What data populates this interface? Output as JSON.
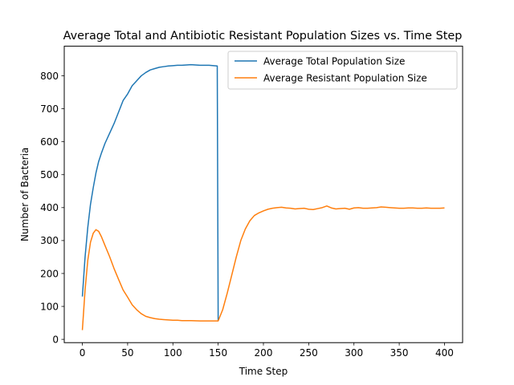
{
  "chart_data": {
    "type": "line",
    "title": "Average Total and Antibiotic Resistant Population Sizes vs. Time Step",
    "xlabel": "Time Step",
    "ylabel": "Number of Bacteria",
    "xlim": [
      -20,
      420
    ],
    "ylim": [
      -10,
      890
    ],
    "xticks": [
      0,
      50,
      100,
      150,
      200,
      250,
      300,
      350,
      400
    ],
    "yticks": [
      0,
      100,
      200,
      300,
      400,
      500,
      600,
      700,
      800
    ],
    "grid": false,
    "legend_position": "top-right",
    "series": [
      {
        "name": "Average Total Population Size",
        "color": "#1f77b4",
        "x": [
          0,
          3,
          6,
          9,
          12,
          15,
          18,
          21,
          25,
          30,
          35,
          40,
          45,
          50,
          55,
          60,
          65,
          70,
          75,
          80,
          85,
          90,
          95,
          100,
          105,
          110,
          115,
          120,
          125,
          130,
          135,
          140,
          145,
          149,
          150
        ],
        "y": [
          130,
          250,
          340,
          410,
          460,
          505,
          540,
          565,
          595,
          625,
          655,
          690,
          725,
          745,
          770,
          785,
          800,
          810,
          818,
          822,
          826,
          828,
          830,
          831,
          832,
          832,
          833,
          834,
          833,
          832,
          832,
          832,
          831,
          830,
          57
        ]
      },
      {
        "name": "Average Resistant Population Size",
        "color": "#ff7f0e",
        "x": [
          0,
          3,
          6,
          9,
          12,
          15,
          18,
          21,
          25,
          30,
          35,
          40,
          45,
          50,
          55,
          60,
          65,
          70,
          75,
          80,
          85,
          90,
          95,
          100,
          105,
          110,
          115,
          120,
          130,
          140,
          150,
          155,
          160,
          165,
          170,
          175,
          180,
          185,
          190,
          195,
          200,
          205,
          210,
          215,
          220,
          225,
          230,
          235,
          240,
          245,
          250,
          255,
          260,
          265,
          270,
          275,
          280,
          285,
          290,
          295,
          300,
          305,
          310,
          315,
          320,
          325,
          330,
          335,
          340,
          345,
          350,
          355,
          360,
          365,
          370,
          375,
          380,
          385,
          390,
          395,
          400
        ],
        "y": [
          28,
          150,
          240,
          295,
          322,
          333,
          328,
          312,
          285,
          252,
          215,
          182,
          150,
          128,
          105,
          90,
          78,
          70,
          66,
          63,
          61,
          60,
          59,
          58,
          58,
          57,
          57,
          57,
          56,
          56,
          56,
          90,
          140,
          195,
          250,
          300,
          335,
          360,
          376,
          384,
          390,
          395,
          398,
          400,
          401,
          399,
          398,
          396,
          397,
          398,
          395,
          394,
          397,
          400,
          405,
          399,
          396,
          397,
          398,
          395,
          399,
          400,
          398,
          398,
          399,
          400,
          402,
          401,
          400,
          399,
          398,
          398,
          399,
          399,
          398,
          398,
          399,
          398,
          398,
          398,
          399
        ]
      }
    ]
  }
}
